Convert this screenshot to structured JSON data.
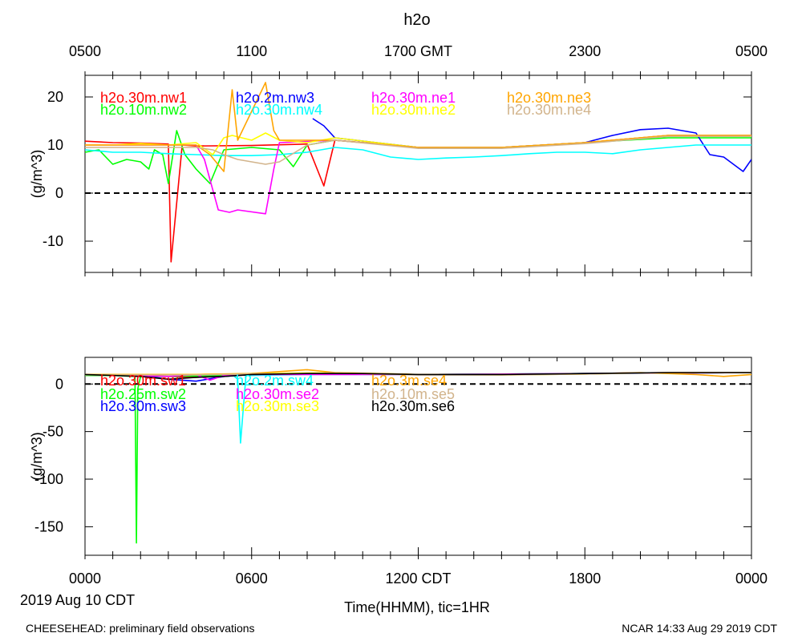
{
  "header": {
    "title": "h2o",
    "top_axis_ticks": [
      "0500",
      "1100",
      "1700 GMT",
      "2300",
      "0500"
    ],
    "date_label": "2019 Aug 10 CDT",
    "xlabel": "Time(HHMM), tic=1HR",
    "footer_left": "CHEESEHEAD: preliminary field observations",
    "footer_right": "NCAR 14:33 Aug 29 2019 CDT"
  },
  "chart_data": [
    {
      "type": "line",
      "ylabel": "(g/m^3)",
      "ylim": [
        -16.5,
        24.5
      ],
      "yticks": [
        20,
        10,
        0,
        -10
      ],
      "xlim": [
        0,
        24
      ],
      "zero_line": "dashed",
      "series": [
        {
          "name": "h2o.30m.nw1",
          "color": "#ff0000",
          "x": [
            0,
            1,
            2,
            3,
            3.1,
            3.5,
            4,
            6,
            8,
            8.6,
            9,
            12,
            15,
            18,
            21,
            24
          ],
          "y": [
            10.8,
            10.5,
            10.4,
            10.2,
            -14.3,
            10,
            9.8,
            9.9,
            10.2,
            1.5,
            11,
            9.5,
            9.4,
            10.5,
            12,
            12
          ]
        },
        {
          "name": "h2o.10m.nw2",
          "color": "#00ff00",
          "x": [
            0,
            0.5,
            1,
            1.5,
            2,
            2.3,
            2.5,
            2.8,
            3,
            3.3,
            3.6,
            4,
            4.5,
            5,
            6,
            7,
            7.5,
            8,
            9,
            12,
            15,
            18,
            21,
            24
          ],
          "y": [
            8.5,
            9,
            6,
            7,
            6.5,
            5,
            9,
            8,
            2,
            13,
            8,
            5,
            2,
            9,
            9.5,
            9,
            5.5,
            10,
            11,
            9.5,
            9.5,
            10.5,
            11.5,
            11.5
          ]
        },
        {
          "name": "h2o.2m.nw3",
          "color": "#0000ff",
          "x": [
            8.2,
            8.6,
            9,
            12,
            15,
            18,
            19,
            20,
            21,
            22,
            22.5,
            23,
            23.7,
            24
          ],
          "y": [
            15.5,
            14,
            11.5,
            9.5,
            9.5,
            10.5,
            12,
            13.2,
            13.5,
            12.5,
            8,
            7.5,
            4.5,
            7
          ]
        },
        {
          "name": "h2o.30m.nw4",
          "color": "#00ffff",
          "x": [
            0,
            1,
            2,
            3,
            4,
            5,
            6,
            7,
            8,
            9,
            10,
            11,
            12,
            13,
            14,
            15,
            16,
            17,
            18,
            19,
            20,
            21,
            22,
            23,
            24
          ],
          "y": [
            9,
            8.5,
            8.5,
            8.2,
            8,
            7.8,
            7.8,
            8,
            8.5,
            9.5,
            9,
            7.5,
            7,
            7.3,
            7.5,
            7.8,
            8.2,
            8.5,
            8.5,
            8.2,
            9,
            9.5,
            10,
            10,
            10
          ]
        },
        {
          "name": "h2o.30m.ne1",
          "color": "#ff00ff",
          "x": [
            0,
            2,
            4,
            4.3,
            4.8,
            5.2,
            5.5,
            6.5,
            6.8,
            7,
            9,
            12,
            15,
            18,
            21,
            24
          ],
          "y": [
            10,
            10,
            10,
            7,
            -3.5,
            -4,
            -3.5,
            -4.3,
            5,
            10.5,
            11,
            9.5,
            9.5,
            10.5,
            12,
            12
          ]
        },
        {
          "name": "h2o.30m.ne2",
          "color": "#ffff00",
          "x": [
            0,
            1,
            2,
            3,
            4,
            4.6,
            5,
            5.3,
            6,
            6.5,
            7,
            8,
            9,
            12,
            15,
            18,
            21,
            24
          ],
          "y": [
            10,
            10,
            10.3,
            10,
            10.5,
            8,
            11.5,
            12,
            11,
            12.5,
            11,
            10.5,
            11.5,
            9.5,
            9.5,
            10.5,
            12,
            12
          ]
        },
        {
          "name": "h2o.30m.ne3",
          "color": "#ffa500",
          "x": [
            0,
            2,
            4,
            4.5,
            5,
            5.3,
            5.5,
            6.5,
            6.8,
            7,
            9,
            12,
            15,
            18,
            21,
            24
          ],
          "y": [
            10,
            10,
            10,
            8,
            4.5,
            21.5,
            11,
            23,
            13,
            11,
            11,
            9.5,
            9.5,
            10.5,
            12,
            12
          ]
        },
        {
          "name": "h2o.30m.ne4",
          "color": "#d2b48c",
          "x": [
            0,
            2,
            4,
            4.6,
            5,
            5.5,
            6,
            6.5,
            7,
            8,
            9,
            12,
            15,
            18,
            21,
            24
          ],
          "y": [
            9.5,
            9.5,
            9.5,
            9,
            8,
            7,
            6.5,
            6,
            6.5,
            10,
            11,
            9.3,
            9.3,
            10.3,
            11.8,
            11.8
          ]
        }
      ]
    },
    {
      "type": "line",
      "ylabel": "(g/m^3)",
      "ylim": [
        -180,
        28
      ],
      "yticks": [
        0,
        -50,
        -100,
        -150
      ],
      "xlim": [
        0,
        24
      ],
      "xticks": [
        "0000",
        "0600",
        "1200 CDT",
        "1800",
        "0000"
      ],
      "zero_line": "dashed",
      "series": [
        {
          "name": "h2o.30m.sw1",
          "color": "#ff0000",
          "x": [
            0,
            2,
            4,
            6,
            8,
            10,
            12,
            15,
            18,
            21,
            24
          ],
          "y": [
            10,
            9,
            7,
            10,
            11,
            11,
            10,
            10,
            11,
            12,
            12
          ]
        },
        {
          "name": "h2o.25m.sw2",
          "color": "#00ff00",
          "x": [
            0,
            1,
            1.8,
            1.85,
            1.9,
            2,
            3,
            5,
            8,
            12,
            18,
            24
          ],
          "y": [
            9,
            9,
            8,
            -167,
            -5,
            8,
            8,
            9,
            11,
            10,
            11,
            12
          ]
        },
        {
          "name": "h2o.30m.sw3",
          "color": "#0000ff",
          "x": [
            0,
            2,
            3,
            4,
            5,
            6,
            8,
            12,
            18,
            24
          ],
          "y": [
            10,
            9,
            5,
            3,
            8,
            10,
            11,
            10,
            11,
            12
          ]
        },
        {
          "name": "h2o.2m.sw4",
          "color": "#00ffff",
          "x": [
            5,
            5.3,
            5.5,
            5.6,
            5.8,
            6,
            8,
            12,
            18,
            24
          ],
          "y": [
            8,
            10,
            5,
            -62,
            10,
            9,
            10,
            10,
            11,
            12
          ]
        },
        {
          "name": "h2o.30m.se2",
          "color": "#ff00ff",
          "x": [
            0,
            3,
            4,
            4.5,
            5,
            6,
            12,
            18,
            24
          ],
          "y": [
            10,
            8,
            10,
            4,
            9,
            10,
            10,
            11,
            12
          ]
        },
        {
          "name": "h2o.30m.se3",
          "color": "#ffff00",
          "x": [
            0,
            4,
            6,
            9,
            12,
            15,
            18,
            21,
            24
          ],
          "y": [
            10,
            10,
            11,
            12,
            10,
            9.5,
            10.5,
            12,
            12
          ]
        },
        {
          "name": "h2o.3m.se4",
          "color": "#ffa500",
          "x": [
            0,
            4,
            6,
            8,
            9,
            12,
            15,
            18,
            20,
            22,
            23,
            24
          ],
          "y": [
            10,
            10,
            11,
            15,
            12,
            10,
            10,
            10.5,
            12,
            10,
            8,
            10
          ]
        },
        {
          "name": "h2o.10m.se5",
          "color": "#d2b48c",
          "x": [
            0,
            4,
            6,
            9,
            12,
            15,
            18,
            21,
            24
          ],
          "y": [
            9.5,
            9.5,
            10.5,
            11.5,
            9.5,
            9.5,
            10.5,
            12,
            12
          ]
        },
        {
          "name": "h2o.30m.se6",
          "color": "#000000",
          "x": [
            0,
            2,
            3,
            4,
            5,
            6,
            8,
            10,
            12,
            15,
            18,
            21,
            24
          ],
          "y": [
            10,
            8,
            5,
            7,
            8,
            10,
            11,
            11,
            10,
            10,
            11,
            12,
            12
          ]
        }
      ]
    }
  ]
}
